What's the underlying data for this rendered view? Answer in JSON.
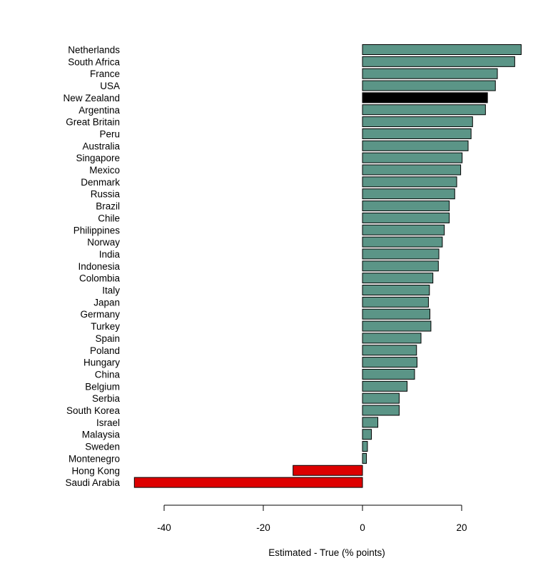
{
  "chart_data": {
    "type": "bar",
    "orientation": "horizontal",
    "xlabel": "Estimated - True (% points)",
    "xlim": [
      -46,
      32
    ],
    "xticks": [
      -40,
      -20,
      0,
      20
    ],
    "tick_labels": [
      "-40",
      "-20",
      "0",
      "20"
    ],
    "grid": false,
    "legend": "none",
    "colors": {
      "positive": "#5b9587",
      "highlight": "#000000",
      "negative": "#dd0000",
      "stroke": "#000000"
    },
    "categories": [
      "Netherlands",
      "South Africa",
      "France",
      "USA",
      "New Zealand",
      "Argentina",
      "Great Britain",
      "Peru",
      "Australia",
      "Singapore",
      "Mexico",
      "Denmark",
      "Russia",
      "Brazil",
      "Chile",
      "Philippines",
      "Norway",
      "India",
      "Indonesia",
      "Colombia",
      "Italy",
      "Japan",
      "Germany",
      "Turkey",
      "Spain",
      "Poland",
      "Hungary",
      "China",
      "Belgium",
      "Serbia",
      "South Korea",
      "Israel",
      "Malaysia",
      "Sweden",
      "Montenegro",
      "Hong Kong",
      "Saudi Arabia"
    ],
    "values": [
      32,
      30.7,
      27.2,
      26.8,
      25.2,
      24.8,
      22.2,
      21.9,
      21.3,
      20.1,
      19.8,
      19,
      18.6,
      17.5,
      17.5,
      16.5,
      16.1,
      15.4,
      15.3,
      14.2,
      13.5,
      13.3,
      13.6,
      13.8,
      11.8,
      10.9,
      11,
      10.5,
      9,
      7.4,
      7.4,
      3.1,
      1.8,
      1,
      0.8,
      -14,
      -46
    ],
    "highlight_category": "New Zealand"
  }
}
